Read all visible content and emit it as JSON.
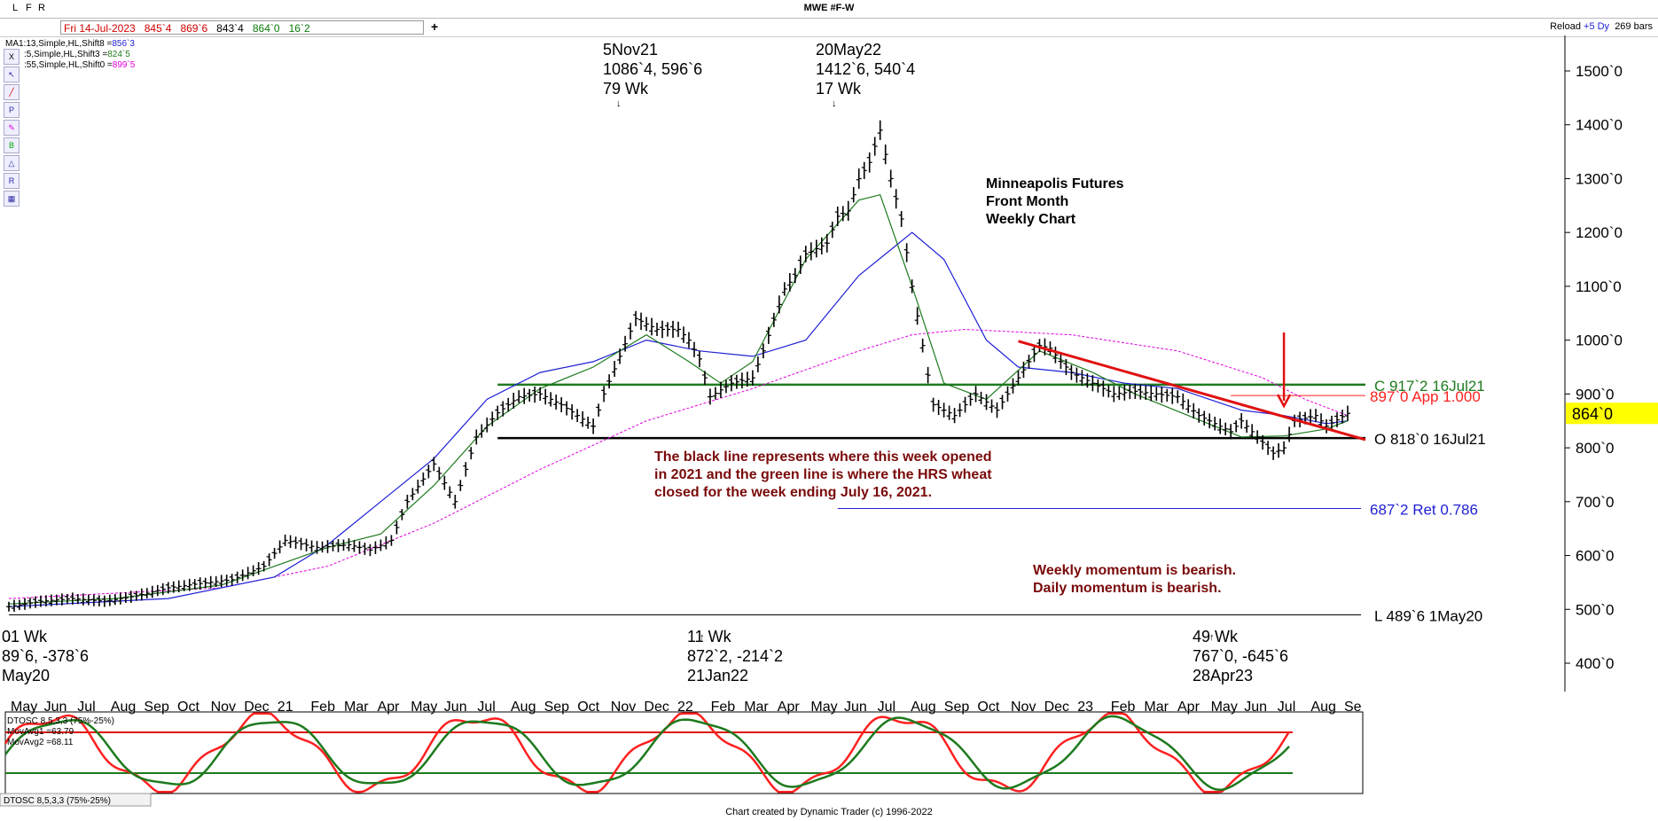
{
  "window": {
    "title": "MWE #F-W",
    "tabs": [
      "L",
      "F",
      "R"
    ],
    "add_tab": "+",
    "reload": "Reload",
    "range": "+5 Dy",
    "bars": "269 bars"
  },
  "quote_bar": {
    "date": "Fri 14-Jul-2023",
    "open": "845`4",
    "high": "869`6",
    "low": "843`4",
    "close": "864`0",
    "change": "16`2"
  },
  "moving_averages": [
    {
      "label": "MA1:13,Simple,HL,Shift8 =",
      "value": "856`3",
      "color": "#1f1fd6"
    },
    {
      "label": ":5,Simple,HL,Shift3 =",
      "value": "824`5",
      "color": "#1e7a1e"
    },
    {
      "label": ":55,Simple,HL,Shift0 =",
      "value": "899`5",
      "color": "#e000e0"
    }
  ],
  "chart_data": {
    "type": "line",
    "note_series": "weekly OHLC bars",
    "y_axis": {
      "ticks": [
        "400`0",
        "500`0",
        "600`0",
        "700`0",
        "800`0",
        "900`0",
        "1000`0",
        "1100`0",
        "1200`0",
        "1300`0",
        "1400`0",
        "1500`0"
      ],
      "tick_values": [
        400,
        500,
        600,
        700,
        800,
        900,
        1000,
        1100,
        1200,
        1300,
        1400,
        1500
      ],
      "ylim": [
        355,
        1600
      ]
    },
    "x_axis": {
      "labels": [
        "May",
        "Jun",
        "Jul",
        "Aug",
        "Sep",
        "Oct",
        "Nov",
        "Dec",
        "21",
        "Feb",
        "Mar",
        "Apr",
        "May",
        "Jun",
        "Jul",
        "Aug",
        "Sep",
        "Oct",
        "Nov",
        "Dec",
        "22",
        "Feb",
        "Mar",
        "Apr",
        "May",
        "Jun",
        "Jul",
        "Aug",
        "Sep",
        "Oct",
        "Nov",
        "Dec",
        "23",
        "Feb",
        "Mar",
        "Apr",
        "May",
        "Jun",
        "Jul",
        "Aug",
        "Se"
      ]
    },
    "price_points": [
      [
        0,
        505
      ],
      [
        6,
        515
      ],
      [
        12,
        520
      ],
      [
        18,
        515
      ],
      [
        24,
        525
      ],
      [
        30,
        540
      ],
      [
        36,
        548
      ],
      [
        42,
        555
      ],
      [
        48,
        580
      ],
      [
        52,
        628
      ],
      [
        58,
        615
      ],
      [
        64,
        620
      ],
      [
        68,
        610
      ],
      [
        72,
        628
      ],
      [
        75,
        700
      ],
      [
        80,
        770
      ],
      [
        84,
        700
      ],
      [
        88,
        820
      ],
      [
        92,
        865
      ],
      [
        96,
        895
      ],
      [
        100,
        900
      ],
      [
        104,
        880
      ],
      [
        110,
        840
      ],
      [
        112,
        900
      ],
      [
        118,
        1040
      ],
      [
        122,
        1020
      ],
      [
        126,
        1020
      ],
      [
        128,
        1000
      ],
      [
        130,
        965
      ],
      [
        132,
        895
      ],
      [
        136,
        920
      ],
      [
        140,
        930
      ],
      [
        142,
        980
      ],
      [
        146,
        1095
      ],
      [
        148,
        1120
      ],
      [
        150,
        1160
      ],
      [
        154,
        1180
      ],
      [
        156,
        1230
      ],
      [
        158,
        1240
      ],
      [
        160,
        1300
      ],
      [
        162,
        1330
      ],
      [
        164,
        1390
      ],
      [
        166,
        1300
      ],
      [
        168,
        1225
      ],
      [
        170,
        1100
      ],
      [
        174,
        880
      ],
      [
        178,
        860
      ],
      [
        182,
        900
      ],
      [
        186,
        870
      ],
      [
        190,
        930
      ],
      [
        194,
        990
      ],
      [
        196,
        985
      ],
      [
        198,
        960
      ],
      [
        200,
        940
      ],
      [
        204,
        920
      ],
      [
        208,
        900
      ],
      [
        212,
        905
      ],
      [
        216,
        900
      ],
      [
        220,
        895
      ],
      [
        224,
        860
      ],
      [
        228,
        840
      ],
      [
        230,
        830
      ],
      [
        232,
        850
      ],
      [
        236,
        810
      ],
      [
        238,
        790
      ],
      [
        240,
        800
      ],
      [
        242,
        850
      ],
      [
        246,
        860
      ],
      [
        248,
        840
      ],
      [
        252,
        864
      ]
    ],
    "ma_green": [
      [
        0,
        510
      ],
      [
        20,
        520
      ],
      [
        40,
        545
      ],
      [
        60,
        615
      ],
      [
        70,
        640
      ],
      [
        80,
        730
      ],
      [
        90,
        840
      ],
      [
        100,
        910
      ],
      [
        110,
        950
      ],
      [
        120,
        1010
      ],
      [
        128,
        960
      ],
      [
        134,
        920
      ],
      [
        140,
        960
      ],
      [
        150,
        1150
      ],
      [
        160,
        1260
      ],
      [
        164,
        1270
      ],
      [
        170,
        1100
      ],
      [
        176,
        920
      ],
      [
        184,
        890
      ],
      [
        194,
        980
      ],
      [
        204,
        940
      ],
      [
        212,
        900
      ],
      [
        222,
        860
      ],
      [
        232,
        820
      ],
      [
        240,
        822
      ],
      [
        248,
        835
      ],
      [
        252,
        850
      ]
    ],
    "ma_blue": [
      [
        0,
        505
      ],
      [
        30,
        520
      ],
      [
        50,
        560
      ],
      [
        60,
        620
      ],
      [
        70,
        700
      ],
      [
        80,
        780
      ],
      [
        90,
        890
      ],
      [
        100,
        940
      ],
      [
        110,
        960
      ],
      [
        120,
        1000
      ],
      [
        130,
        980
      ],
      [
        140,
        970
      ],
      [
        150,
        1000
      ],
      [
        160,
        1120
      ],
      [
        170,
        1200
      ],
      [
        176,
        1150
      ],
      [
        184,
        1000
      ],
      [
        190,
        950
      ],
      [
        200,
        940
      ],
      [
        210,
        920
      ],
      [
        220,
        910
      ],
      [
        232,
        870
      ],
      [
        240,
        860
      ],
      [
        248,
        845
      ],
      [
        252,
        850
      ]
    ],
    "ma_magenta": [
      [
        0,
        520
      ],
      [
        40,
        540
      ],
      [
        60,
        580
      ],
      [
        80,
        660
      ],
      [
        100,
        760
      ],
      [
        120,
        850
      ],
      [
        140,
        910
      ],
      [
        160,
        980
      ],
      [
        170,
        1010
      ],
      [
        180,
        1020
      ],
      [
        200,
        1010
      ],
      [
        220,
        980
      ],
      [
        236,
        930
      ],
      [
        244,
        890
      ],
      [
        252,
        860
      ]
    ],
    "levels": [
      {
        "label": "C 917`2 16Jul21",
        "value": 917.25,
        "color": "#1e7a1e"
      },
      {
        "label": "O 818`0 16Jul21",
        "value": 818,
        "color": "#000000"
      },
      {
        "label": "897`0 App 1.000",
        "value": 897,
        "color": "#ff2020"
      },
      {
        "label": "687`2 Ret 0.786",
        "value": 687.25,
        "color": "#1f1fd6"
      },
      {
        "label": "L 489`6 1May20",
        "value": 489.75,
        "color": "#000000"
      }
    ],
    "current_price_label": "864`0",
    "current_price": 864,
    "trendline": {
      "from": [
        190,
        998
      ],
      "to": [
        252,
        815
      ],
      "color": "#e01010"
    },
    "swing_labels": [
      {
        "lines": [
          "5Nov21",
          "1086`4, 596`6",
          "79 Wk"
        ]
      },
      {
        "lines": [
          "20May22",
          "1412`6, 540`4",
          "17 Wk"
        ]
      },
      {
        "lines": [
          "01 Wk",
          "89`6, -378`6",
          "May20"
        ]
      },
      {
        "lines": [
          "11 Wk",
          "872`2, -214`2",
          "21Jan22"
        ]
      },
      {
        "lines": [
          "49 Wk",
          "767`0, -645`6",
          "28Apr23"
        ]
      }
    ],
    "annotations": [
      {
        "lines": [
          "Minneapolis Futures",
          "Front Month",
          "Weekly Chart"
        ],
        "color": "#000000"
      },
      {
        "lines": [
          "The black line represents where this week opened",
          "in 2021 and the green line is where the HRS wheat",
          "closed for the week ending July 16, 2021."
        ],
        "color": "#7a0a0a"
      },
      {
        "lines": [
          "Weekly momentum is bearish.",
          "Daily momentum is bearish."
        ],
        "color": "#7a0a0a"
      }
    ]
  },
  "oscillator": {
    "title": "DTOSC 8,5,3,3 (75%-25%)",
    "ma1_label": "MovAvg1 =",
    "ma1_value": "63.79",
    "ma2_label": "MovAvg2 =",
    "ma2_value": "68.11",
    "tab_label": "DTOSC 8,5,3,3 (75%-25%)",
    "upper_band": 75,
    "lower_band": 25
  },
  "footer": "Chart created by Dynamic Trader  (c) 1996-2022"
}
